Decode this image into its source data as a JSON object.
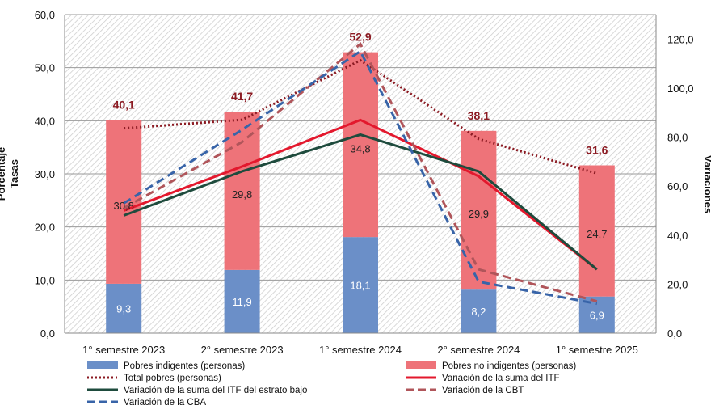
{
  "chart_data": {
    "type": "bar",
    "title": "",
    "ylabel_left_line1": "Tasas",
    "ylabel_left_line2": "Porcentaje",
    "ylabel_right": "Variaciones",
    "categories": [
      "1° semestre 2023",
      "2° semestre 2023",
      "1° semestre 2024",
      "2° semestre 2024",
      "1° semestre 2025"
    ],
    "ylim": [
      0,
      60
    ],
    "y2lim": [
      0,
      130
    ],
    "yticks": [
      "0,0",
      "10,0",
      "20,0",
      "30,0",
      "40,0",
      "50,0",
      "60,0"
    ],
    "y2ticks": [
      "0,0",
      "20,0",
      "40,0",
      "60,0",
      "80,0",
      "100,0",
      "120,0"
    ],
    "bar_series": [
      {
        "name": "Pobres indigentes (personas)",
        "color": "#6b8fc8",
        "values": [
          9.3,
          11.9,
          18.1,
          8.2,
          6.9
        ],
        "labels": [
          "9,3",
          "11,9",
          "18,1",
          "8,2",
          "6,9"
        ]
      },
      {
        "name": "Pobres no indigentes (personas)",
        "color": "#ee7379",
        "values": [
          30.8,
          29.8,
          34.8,
          29.9,
          24.7
        ],
        "labels": [
          "30,8",
          "29,8",
          "34,8",
          "29,9",
          "24,7"
        ]
      }
    ],
    "totals": {
      "name": "Total pobres (personas)",
      "color": "#8b1a22",
      "values": [
        40.1,
        41.7,
        52.9,
        38.1,
        31.6
      ],
      "labels": [
        "40,1",
        "41,7",
        "52,9",
        "38,1",
        "31,6"
      ]
    },
    "line_series": [
      {
        "name": "Variación de la suma del ITF",
        "color": "#e3182d",
        "dash": "solid",
        "values": [
          50,
          68,
          87,
          64,
          26
        ]
      },
      {
        "name": "Variación de la suma del ITF del estrato bajo",
        "color": "#1e4b3d",
        "dash": "solid",
        "values": [
          48,
          66,
          81,
          66,
          26
        ]
      },
      {
        "name": "Variación de la CBT",
        "color": "#b0555a",
        "dash": "dashed",
        "values": [
          51,
          78,
          118,
          26,
          13
        ]
      },
      {
        "name": "Variación de la CBA",
        "color": "#3864a8",
        "dash": "dashed",
        "values": [
          53,
          83,
          115,
          21,
          12
        ]
      }
    ],
    "legend_placement": "bottom",
    "grid": "horizontal",
    "background": "hatched"
  }
}
